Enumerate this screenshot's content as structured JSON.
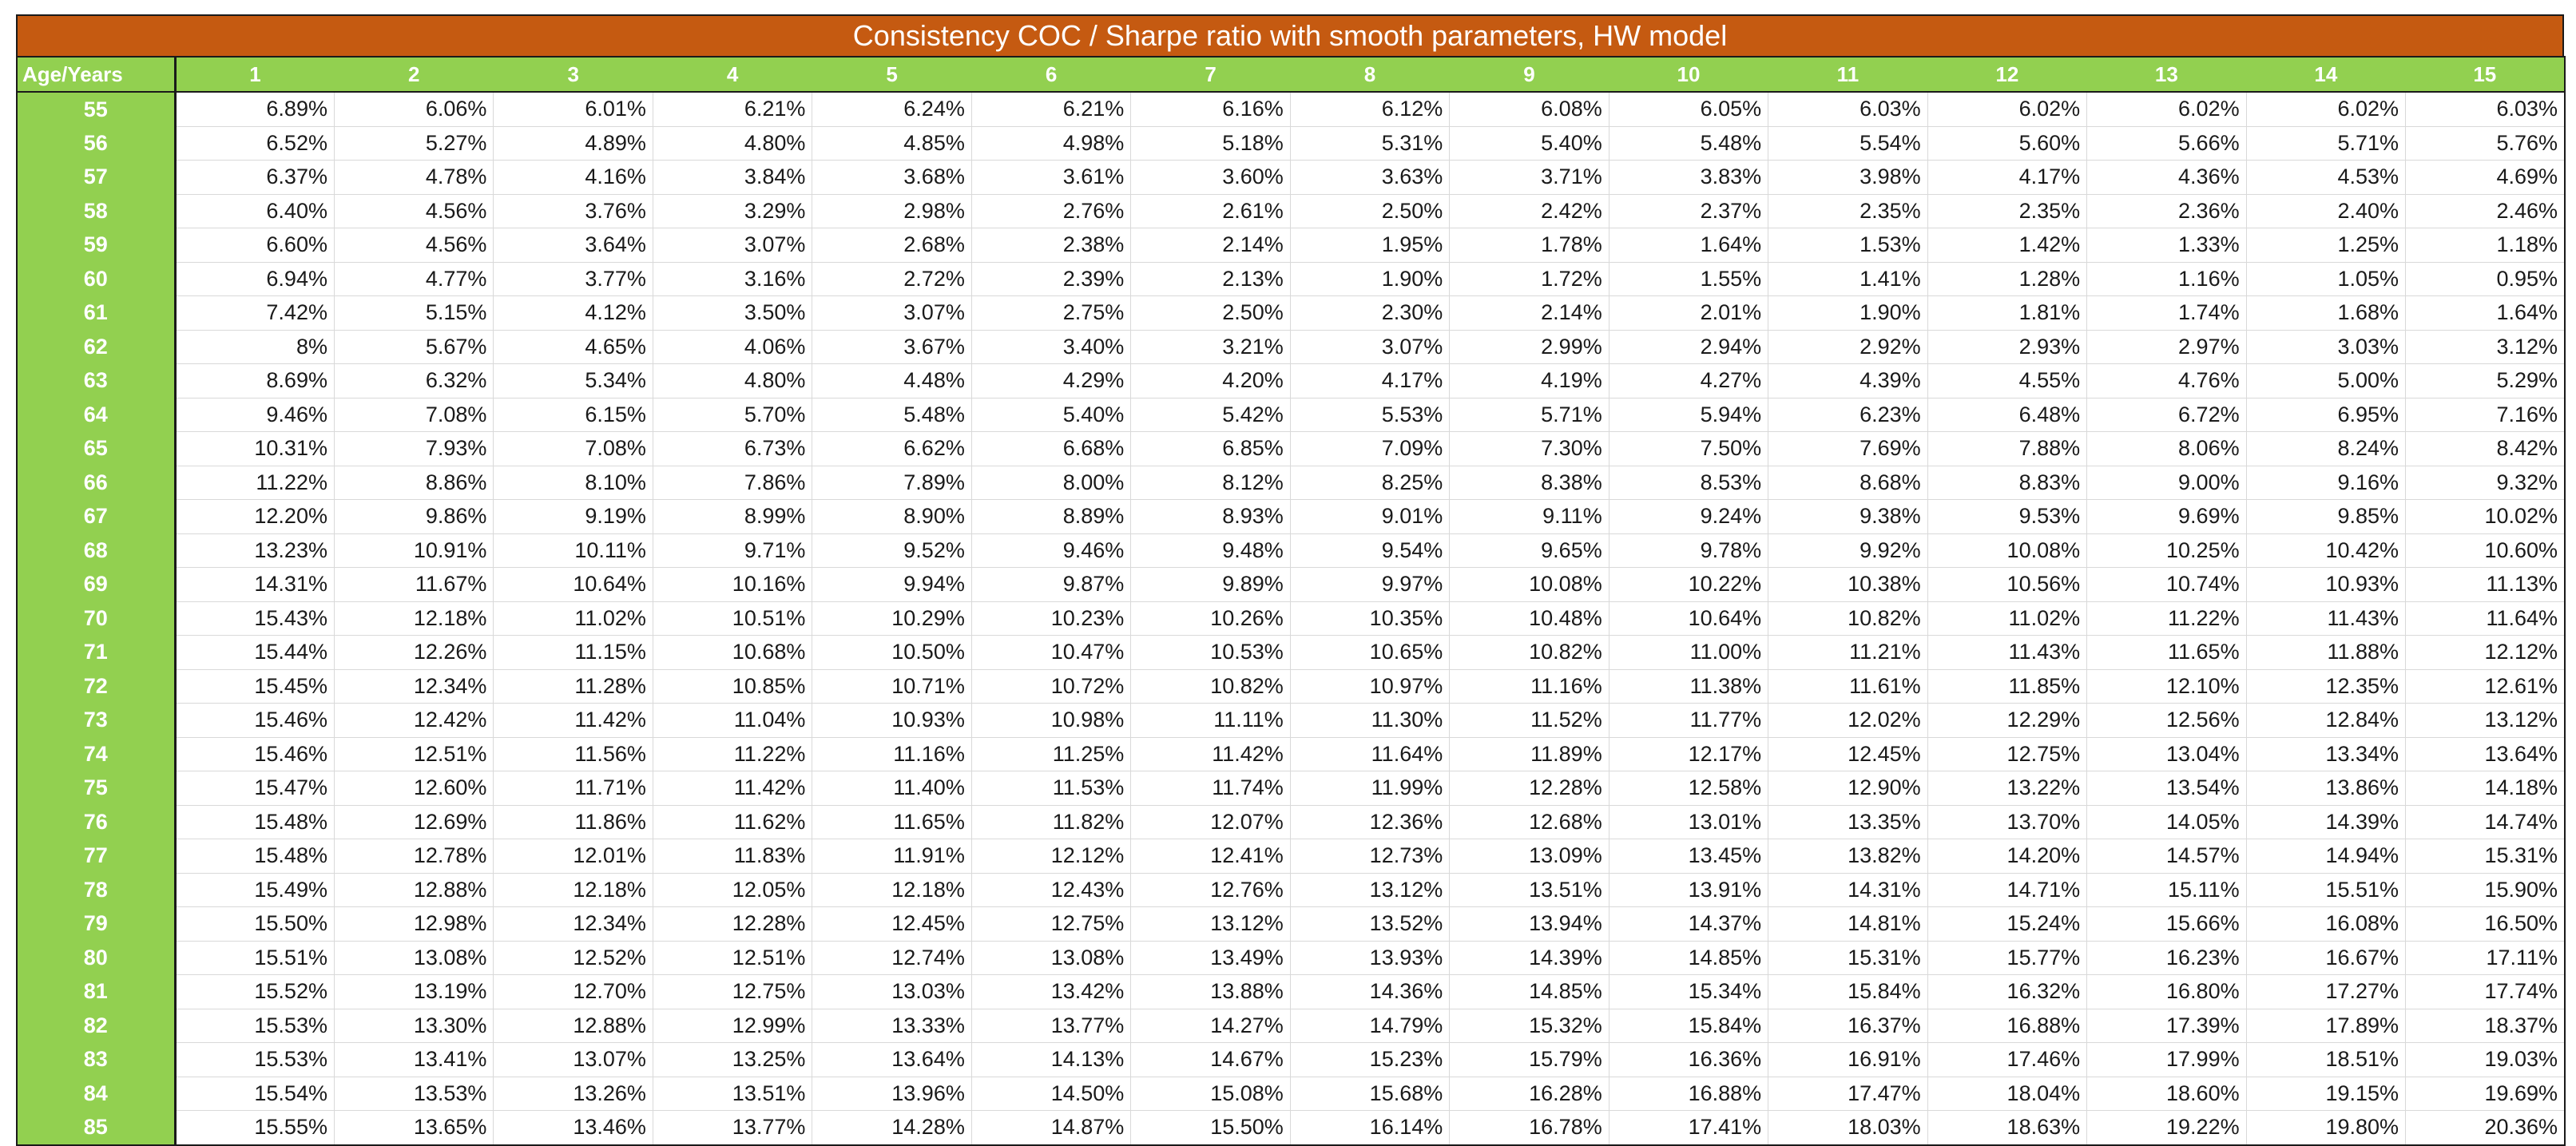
{
  "table": {
    "title": "Consistency COC / Sharpe ratio with smooth parameters, HW model",
    "corner_label": "Age/Years",
    "years": [
      "1",
      "2",
      "3",
      "4",
      "5",
      "6",
      "7",
      "8",
      "9",
      "10",
      "11",
      "12",
      "13",
      "14",
      "15"
    ],
    "rows": [
      {
        "age": "55",
        "values": [
          "6.89%",
          "6.06%",
          "6.01%",
          "6.21%",
          "6.24%",
          "6.21%",
          "6.16%",
          "6.12%",
          "6.08%",
          "6.05%",
          "6.03%",
          "6.02%",
          "6.02%",
          "6.02%",
          "6.03%"
        ]
      },
      {
        "age": "56",
        "values": [
          "6.52%",
          "5.27%",
          "4.89%",
          "4.80%",
          "4.85%",
          "4.98%",
          "5.18%",
          "5.31%",
          "5.40%",
          "5.48%",
          "5.54%",
          "5.60%",
          "5.66%",
          "5.71%",
          "5.76%"
        ]
      },
      {
        "age": "57",
        "values": [
          "6.37%",
          "4.78%",
          "4.16%",
          "3.84%",
          "3.68%",
          "3.61%",
          "3.60%",
          "3.63%",
          "3.71%",
          "3.83%",
          "3.98%",
          "4.17%",
          "4.36%",
          "4.53%",
          "4.69%"
        ]
      },
      {
        "age": "58",
        "values": [
          "6.40%",
          "4.56%",
          "3.76%",
          "3.29%",
          "2.98%",
          "2.76%",
          "2.61%",
          "2.50%",
          "2.42%",
          "2.37%",
          "2.35%",
          "2.35%",
          "2.36%",
          "2.40%",
          "2.46%"
        ]
      },
      {
        "age": "59",
        "values": [
          "6.60%",
          "4.56%",
          "3.64%",
          "3.07%",
          "2.68%",
          "2.38%",
          "2.14%",
          "1.95%",
          "1.78%",
          "1.64%",
          "1.53%",
          "1.42%",
          "1.33%",
          "1.25%",
          "1.18%"
        ]
      },
      {
        "age": "60",
        "values": [
          "6.94%",
          "4.77%",
          "3.77%",
          "3.16%",
          "2.72%",
          "2.39%",
          "2.13%",
          "1.90%",
          "1.72%",
          "1.55%",
          "1.41%",
          "1.28%",
          "1.16%",
          "1.05%",
          "0.95%"
        ]
      },
      {
        "age": "61",
        "values": [
          "7.42%",
          "5.15%",
          "4.12%",
          "3.50%",
          "3.07%",
          "2.75%",
          "2.50%",
          "2.30%",
          "2.14%",
          "2.01%",
          "1.90%",
          "1.81%",
          "1.74%",
          "1.68%",
          "1.64%"
        ]
      },
      {
        "age": "62",
        "values": [
          "8%",
          "5.67%",
          "4.65%",
          "4.06%",
          "3.67%",
          "3.40%",
          "3.21%",
          "3.07%",
          "2.99%",
          "2.94%",
          "2.92%",
          "2.93%",
          "2.97%",
          "3.03%",
          "3.12%"
        ]
      },
      {
        "age": "63",
        "values": [
          "8.69%",
          "6.32%",
          "5.34%",
          "4.80%",
          "4.48%",
          "4.29%",
          "4.20%",
          "4.17%",
          "4.19%",
          "4.27%",
          "4.39%",
          "4.55%",
          "4.76%",
          "5.00%",
          "5.29%"
        ]
      },
      {
        "age": "64",
        "values": [
          "9.46%",
          "7.08%",
          "6.15%",
          "5.70%",
          "5.48%",
          "5.40%",
          "5.42%",
          "5.53%",
          "5.71%",
          "5.94%",
          "6.23%",
          "6.48%",
          "6.72%",
          "6.95%",
          "7.16%"
        ]
      },
      {
        "age": "65",
        "values": [
          "10.31%",
          "7.93%",
          "7.08%",
          "6.73%",
          "6.62%",
          "6.68%",
          "6.85%",
          "7.09%",
          "7.30%",
          "7.50%",
          "7.69%",
          "7.88%",
          "8.06%",
          "8.24%",
          "8.42%"
        ]
      },
      {
        "age": "66",
        "values": [
          "11.22%",
          "8.86%",
          "8.10%",
          "7.86%",
          "7.89%",
          "8.00%",
          "8.12%",
          "8.25%",
          "8.38%",
          "8.53%",
          "8.68%",
          "8.83%",
          "9.00%",
          "9.16%",
          "9.32%"
        ]
      },
      {
        "age": "67",
        "values": [
          "12.20%",
          "9.86%",
          "9.19%",
          "8.99%",
          "8.90%",
          "8.89%",
          "8.93%",
          "9.01%",
          "9.11%",
          "9.24%",
          "9.38%",
          "9.53%",
          "9.69%",
          "9.85%",
          "10.02%"
        ]
      },
      {
        "age": "68",
        "values": [
          "13.23%",
          "10.91%",
          "10.11%",
          "9.71%",
          "9.52%",
          "9.46%",
          "9.48%",
          "9.54%",
          "9.65%",
          "9.78%",
          "9.92%",
          "10.08%",
          "10.25%",
          "10.42%",
          "10.60%"
        ]
      },
      {
        "age": "69",
        "values": [
          "14.31%",
          "11.67%",
          "10.64%",
          "10.16%",
          "9.94%",
          "9.87%",
          "9.89%",
          "9.97%",
          "10.08%",
          "10.22%",
          "10.38%",
          "10.56%",
          "10.74%",
          "10.93%",
          "11.13%"
        ]
      },
      {
        "age": "70",
        "values": [
          "15.43%",
          "12.18%",
          "11.02%",
          "10.51%",
          "10.29%",
          "10.23%",
          "10.26%",
          "10.35%",
          "10.48%",
          "10.64%",
          "10.82%",
          "11.02%",
          "11.22%",
          "11.43%",
          "11.64%"
        ]
      },
      {
        "age": "71",
        "values": [
          "15.44%",
          "12.26%",
          "11.15%",
          "10.68%",
          "10.50%",
          "10.47%",
          "10.53%",
          "10.65%",
          "10.82%",
          "11.00%",
          "11.21%",
          "11.43%",
          "11.65%",
          "11.88%",
          "12.12%"
        ]
      },
      {
        "age": "72",
        "values": [
          "15.45%",
          "12.34%",
          "11.28%",
          "10.85%",
          "10.71%",
          "10.72%",
          "10.82%",
          "10.97%",
          "11.16%",
          "11.38%",
          "11.61%",
          "11.85%",
          "12.10%",
          "12.35%",
          "12.61%"
        ]
      },
      {
        "age": "73",
        "values": [
          "15.46%",
          "12.42%",
          "11.42%",
          "11.04%",
          "10.93%",
          "10.98%",
          "11.11%",
          "11.30%",
          "11.52%",
          "11.77%",
          "12.02%",
          "12.29%",
          "12.56%",
          "12.84%",
          "13.12%"
        ]
      },
      {
        "age": "74",
        "values": [
          "15.46%",
          "12.51%",
          "11.56%",
          "11.22%",
          "11.16%",
          "11.25%",
          "11.42%",
          "11.64%",
          "11.89%",
          "12.17%",
          "12.45%",
          "12.75%",
          "13.04%",
          "13.34%",
          "13.64%"
        ]
      },
      {
        "age": "75",
        "values": [
          "15.47%",
          "12.60%",
          "11.71%",
          "11.42%",
          "11.40%",
          "11.53%",
          "11.74%",
          "11.99%",
          "12.28%",
          "12.58%",
          "12.90%",
          "13.22%",
          "13.54%",
          "13.86%",
          "14.18%"
        ]
      },
      {
        "age": "76",
        "values": [
          "15.48%",
          "12.69%",
          "11.86%",
          "11.62%",
          "11.65%",
          "11.82%",
          "12.07%",
          "12.36%",
          "12.68%",
          "13.01%",
          "13.35%",
          "13.70%",
          "14.05%",
          "14.39%",
          "14.74%"
        ]
      },
      {
        "age": "77",
        "values": [
          "15.48%",
          "12.78%",
          "12.01%",
          "11.83%",
          "11.91%",
          "12.12%",
          "12.41%",
          "12.73%",
          "13.09%",
          "13.45%",
          "13.82%",
          "14.20%",
          "14.57%",
          "14.94%",
          "15.31%"
        ]
      },
      {
        "age": "78",
        "values": [
          "15.49%",
          "12.88%",
          "12.18%",
          "12.05%",
          "12.18%",
          "12.43%",
          "12.76%",
          "13.12%",
          "13.51%",
          "13.91%",
          "14.31%",
          "14.71%",
          "15.11%",
          "15.51%",
          "15.90%"
        ]
      },
      {
        "age": "79",
        "values": [
          "15.50%",
          "12.98%",
          "12.34%",
          "12.28%",
          "12.45%",
          "12.75%",
          "13.12%",
          "13.52%",
          "13.94%",
          "14.37%",
          "14.81%",
          "15.24%",
          "15.66%",
          "16.08%",
          "16.50%"
        ]
      },
      {
        "age": "80",
        "values": [
          "15.51%",
          "13.08%",
          "12.52%",
          "12.51%",
          "12.74%",
          "13.08%",
          "13.49%",
          "13.93%",
          "14.39%",
          "14.85%",
          "15.31%",
          "15.77%",
          "16.23%",
          "16.67%",
          "17.11%"
        ]
      },
      {
        "age": "81",
        "values": [
          "15.52%",
          "13.19%",
          "12.70%",
          "12.75%",
          "13.03%",
          "13.42%",
          "13.88%",
          "14.36%",
          "14.85%",
          "15.34%",
          "15.84%",
          "16.32%",
          "16.80%",
          "17.27%",
          "17.74%"
        ]
      },
      {
        "age": "82",
        "values": [
          "15.53%",
          "13.30%",
          "12.88%",
          "12.99%",
          "13.33%",
          "13.77%",
          "14.27%",
          "14.79%",
          "15.32%",
          "15.84%",
          "16.37%",
          "16.88%",
          "17.39%",
          "17.89%",
          "18.37%"
        ]
      },
      {
        "age": "83",
        "values": [
          "15.53%",
          "13.41%",
          "13.07%",
          "13.25%",
          "13.64%",
          "14.13%",
          "14.67%",
          "15.23%",
          "15.79%",
          "16.36%",
          "16.91%",
          "17.46%",
          "17.99%",
          "18.51%",
          "19.03%"
        ]
      },
      {
        "age": "84",
        "values": [
          "15.54%",
          "13.53%",
          "13.26%",
          "13.51%",
          "13.96%",
          "14.50%",
          "15.08%",
          "15.68%",
          "16.28%",
          "16.88%",
          "17.47%",
          "18.04%",
          "18.60%",
          "19.15%",
          "19.69%"
        ]
      },
      {
        "age": "85",
        "values": [
          "15.55%",
          "13.65%",
          "13.46%",
          "13.77%",
          "14.28%",
          "14.87%",
          "15.50%",
          "16.14%",
          "16.78%",
          "17.41%",
          "18.03%",
          "18.63%",
          "19.22%",
          "19.80%",
          "20.36%"
        ]
      }
    ]
  },
  "colors": {
    "title_bg": "#c55a11",
    "header_bg": "#92d050",
    "header_text": "#ffffff",
    "gridline": "#d9d9d9"
  }
}
